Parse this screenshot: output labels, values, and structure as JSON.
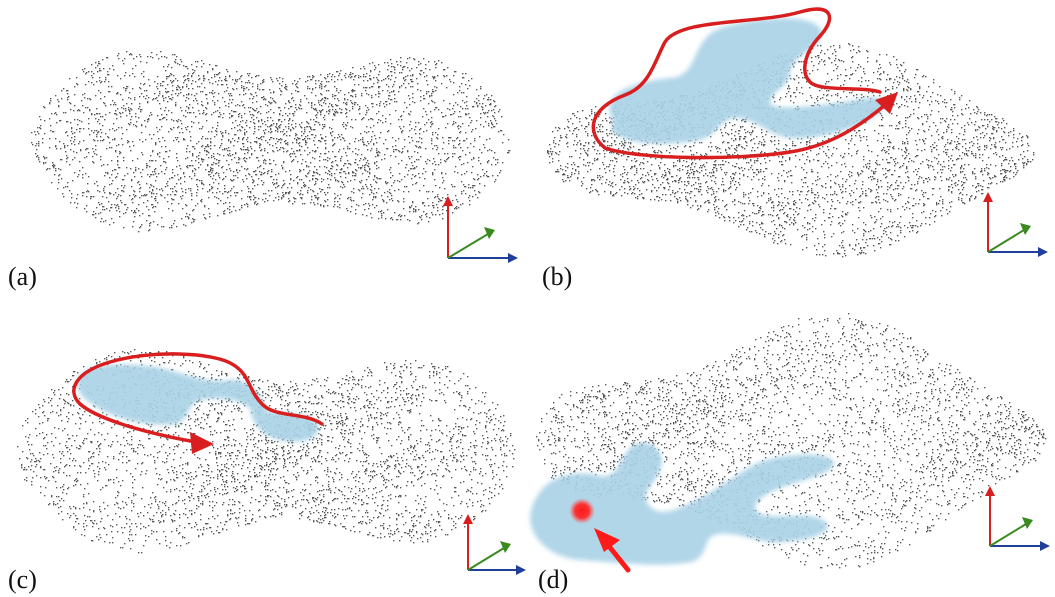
{
  "figure": {
    "panels": [
      {
        "id": "a",
        "label": "(a)",
        "overlay": "none",
        "has_axes": true
      },
      {
        "id": "b",
        "label": "(b)",
        "overlay": "region-with-outline-arrow",
        "has_axes": true
      },
      {
        "id": "c",
        "label": "(c)",
        "overlay": "region-with-outline-arrow",
        "has_axes": true
      },
      {
        "id": "d",
        "label": "(d)",
        "overlay": "region-with-seed-point",
        "has_axes": true
      }
    ],
    "colors": {
      "points": "#222222",
      "region_fill": "#a9d2e6",
      "outline": "#d81e1e",
      "seed_point": "#ff1a1a",
      "axis_x": "#1f3f9a",
      "axis_y": "#d81e1e",
      "axis_z": "#3a8a1f"
    }
  }
}
